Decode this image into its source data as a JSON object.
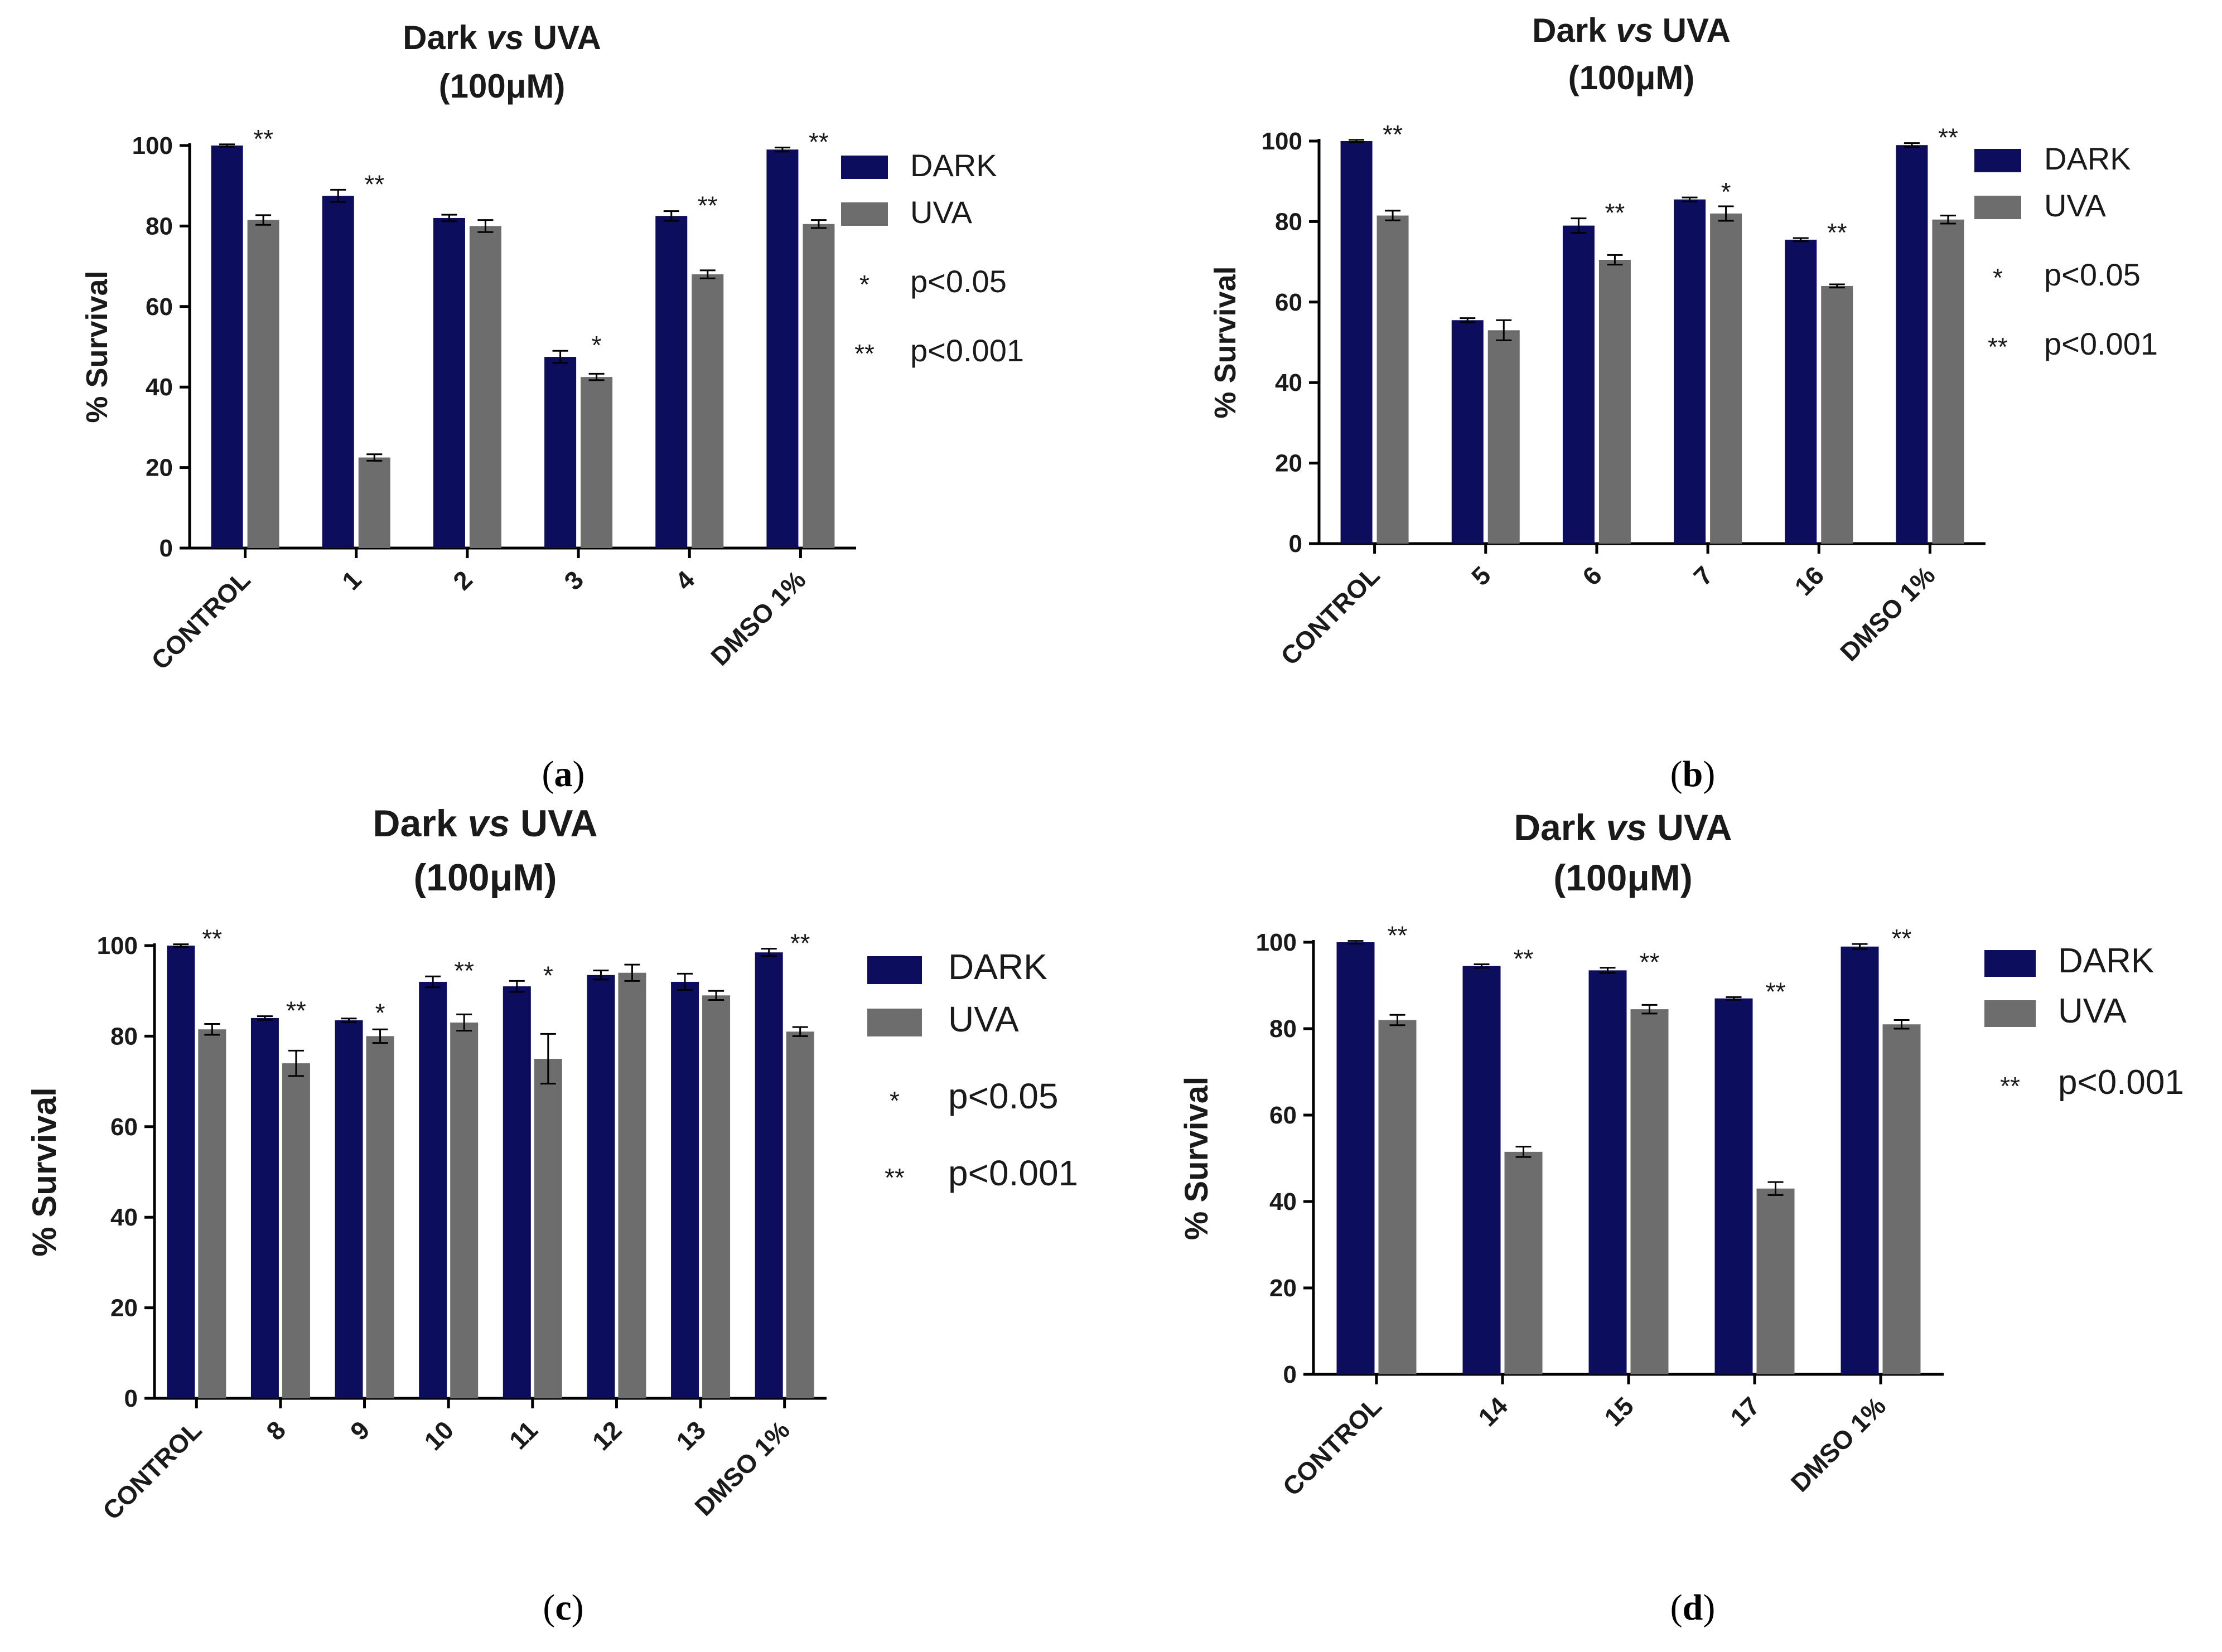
{
  "colors": {
    "dark": "#0d0d5e",
    "uva": "#6d6d6d"
  },
  "chart_data": [
    {
      "panel": "a",
      "type": "bar",
      "caption_prefix": "(",
      "caption_letter": "a",
      "caption_suffix": ")",
      "title_line1_a": "Dark ",
      "title_line1_b": "vs",
      "title_line1_c": " UVA",
      "title_line2": "(100μM)",
      "ylabel": "% Survival",
      "ylim": [
        0,
        100
      ],
      "yticks": [
        "0",
        "20",
        "40",
        "60",
        "80",
        "100"
      ],
      "categories": [
        "CONTROL",
        "1",
        "2",
        "3",
        "4",
        "DMSO 1%"
      ],
      "series": [
        {
          "name": "DARK",
          "values": [
            100,
            87.5,
            82,
            47.5,
            82.5,
            99
          ],
          "errors": [
            0.3,
            1.5,
            0.8,
            1.5,
            1.2,
            0.5
          ]
        },
        {
          "name": "UVA",
          "values": [
            81.5,
            22.5,
            80,
            42.5,
            68,
            80.5
          ],
          "errors": [
            1.2,
            0.8,
            1.5,
            0.8,
            1.0,
            1.0
          ]
        }
      ],
      "significance": [
        "**",
        "**",
        "",
        "*",
        "**",
        "**"
      ],
      "legend": [
        {
          "mark": "",
          "label": "DARK"
        },
        {
          "mark": "",
          "label": "UVA"
        },
        {
          "mark": "*",
          "label": "p<0.05"
        },
        {
          "mark": "**",
          "label": "p<0.001"
        }
      ]
    },
    {
      "panel": "b",
      "type": "bar",
      "caption_prefix": "(",
      "caption_letter": "b",
      "caption_suffix": ")",
      "title_line1_a": "Dark ",
      "title_line1_b": "vs",
      "title_line1_c": " UVA",
      "title_line2": "(100μM)",
      "ylabel": "% Survival",
      "ylim": [
        0,
        100
      ],
      "yticks": [
        "0",
        "20",
        "40",
        "60",
        "80",
        "100"
      ],
      "categories": [
        "CONTROL",
        "5",
        "6",
        "7",
        "16",
        "DMSO 1%"
      ],
      "series": [
        {
          "name": "DARK",
          "values": [
            100,
            55.5,
            79,
            85.5,
            75.5,
            99
          ],
          "errors": [
            0.3,
            0.5,
            1.8,
            0.5,
            0.4,
            0.5
          ]
        },
        {
          "name": "UVA",
          "values": [
            81.5,
            53,
            70.5,
            82,
            64,
            80.5
          ],
          "errors": [
            1.2,
            2.5,
            1.2,
            1.8,
            0.4,
            1.0
          ]
        }
      ],
      "significance": [
        "**",
        "",
        "**",
        "*",
        "**",
        "**"
      ],
      "legend": [
        {
          "mark": "",
          "label": "DARK"
        },
        {
          "mark": "",
          "label": "UVA"
        },
        {
          "mark": "*",
          "label": "p<0.05"
        },
        {
          "mark": "**",
          "label": "p<0.001"
        }
      ]
    },
    {
      "panel": "c",
      "type": "bar",
      "caption_prefix": "(",
      "caption_letter": "c",
      "caption_suffix": ")",
      "title_line1_a": "Dark ",
      "title_line1_b": "vs",
      "title_line1_c": " UVA",
      "title_line2": "(100μM)",
      "ylabel": "% Survival",
      "ylim": [
        0,
        100
      ],
      "yticks": [
        "0",
        "20",
        "40",
        "60",
        "80",
        "100"
      ],
      "categories": [
        "CONTROL",
        "8",
        "9",
        "10",
        "11",
        "12",
        "13",
        "DMSO 1%"
      ],
      "series": [
        {
          "name": "DARK",
          "values": [
            100,
            84,
            83.5,
            92,
            91,
            93.5,
            92,
            98.5
          ],
          "errors": [
            0.3,
            0.4,
            0.4,
            1.2,
            1.2,
            1.0,
            1.8,
            0.8
          ]
        },
        {
          "name": "UVA",
          "values": [
            81.5,
            74,
            80,
            83,
            75,
            94,
            89,
            81
          ],
          "errors": [
            1.2,
            2.8,
            1.5,
            1.8,
            5.5,
            1.8,
            1.0,
            1.0
          ]
        }
      ],
      "significance": [
        "**",
        "**",
        "*",
        "**",
        "*",
        "",
        "",
        "**"
      ],
      "legend": [
        {
          "mark": "",
          "label": "DARK"
        },
        {
          "mark": "",
          "label": "UVA"
        },
        {
          "mark": "*",
          "label": "p<0.05"
        },
        {
          "mark": "**",
          "label": "p<0.001"
        }
      ]
    },
    {
      "panel": "d",
      "type": "bar",
      "caption_prefix": "(",
      "caption_letter": "d",
      "caption_suffix": ")",
      "title_line1_a": "Dark ",
      "title_line1_b": "vs",
      "title_line1_c": " UVA",
      "title_line2": "(100μM)",
      "ylabel": "% Survival",
      "ylim": [
        0,
        100
      ],
      "yticks": [
        "0",
        "20",
        "40",
        "60",
        "80",
        "100"
      ],
      "categories": [
        "CONTROL",
        "14",
        "15",
        "17",
        "DMSO 1%"
      ],
      "series": [
        {
          "name": "DARK",
          "values": [
            100,
            94.5,
            93.5,
            87,
            99
          ],
          "errors": [
            0.3,
            0.4,
            0.6,
            0.3,
            0.6
          ]
        },
        {
          "name": "UVA",
          "values": [
            82,
            51.5,
            84.5,
            43,
            81
          ],
          "errors": [
            1.2,
            1.2,
            1.0,
            1.5,
            1.0
          ]
        }
      ],
      "significance": [
        "**",
        "**",
        "**",
        "**",
        "**"
      ],
      "legend": [
        {
          "mark": "",
          "label": "DARK"
        },
        {
          "mark": "",
          "label": "UVA"
        },
        {
          "mark": "**",
          "label": "p<0.001"
        }
      ]
    }
  ]
}
